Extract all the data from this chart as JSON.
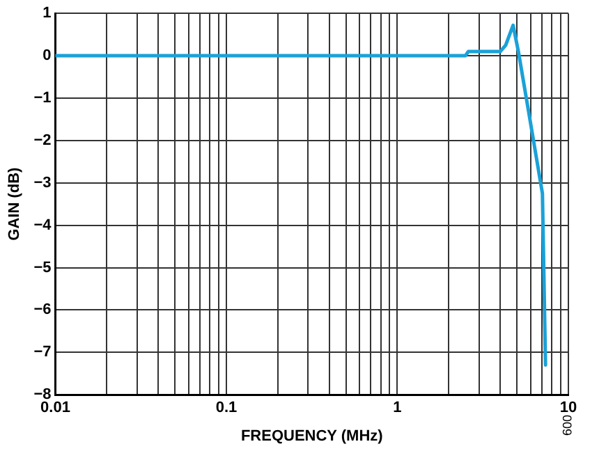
{
  "chart_data": {
    "type": "line",
    "xlabel": "FREQUENCY (MHz)",
    "ylabel": "GAIN (dB)",
    "log": "x",
    "grid": true,
    "legend": false,
    "marker": "none",
    "line_style": "solid",
    "xlim": [
      0.01,
      10
    ],
    "xticks": [
      0.01,
      {
        "value": 0.02,
        "label": null
      },
      {
        "value": 0.03,
        "label": null
      },
      {
        "value": 0.04,
        "label": null
      },
      {
        "value": 0.05,
        "label": null
      },
      {
        "value": 0.06,
        "label": null
      },
      {
        "value": 0.07,
        "label": null
      },
      {
        "value": 0.08,
        "label": null
      },
      {
        "value": 0.09,
        "label": null
      },
      0.1,
      {
        "value": 0.2,
        "label": null
      },
      {
        "value": 0.3,
        "label": null
      },
      {
        "value": 0.4,
        "label": null
      },
      {
        "value": 0.5,
        "label": null
      },
      {
        "value": 0.6,
        "label": null
      },
      {
        "value": 0.7,
        "label": null
      },
      {
        "value": 0.8,
        "label": null
      },
      {
        "value": 0.9,
        "label": null
      },
      1,
      {
        "value": 2,
        "label": null
      },
      {
        "value": 3,
        "label": null
      },
      {
        "value": 4,
        "label": null
      },
      {
        "value": 5,
        "label": null
      },
      {
        "value": 6,
        "label": null
      },
      {
        "value": 7,
        "label": null
      },
      {
        "value": 8,
        "label": null
      },
      {
        "value": 9,
        "label": null
      },
      10
    ],
    "ylim": [
      -8,
      1
    ],
    "yticks": [
      {
        "value": -8,
        "label": "−8"
      },
      {
        "value": -7,
        "label": "−7"
      },
      {
        "value": -6,
        "label": "−6"
      },
      {
        "value": -5,
        "label": "−5"
      },
      {
        "value": -4,
        "label": "−4"
      },
      {
        "value": -3,
        "label": "−3"
      },
      {
        "value": -2,
        "label": "−2"
      },
      {
        "value": -1,
        "label": "−1"
      },
      0,
      1
    ],
    "series": [
      {
        "color": "#1ba1d8",
        "x": [
          0.01,
          0.1,
          1,
          2.5,
          2.6,
          4.0,
          4.3,
          4.75,
          5.1,
          5.9,
          7.05,
          7.35
        ],
        "values": [
          0,
          0,
          0,
          0,
          0.1,
          0.1,
          0.25,
          0.72,
          0.1,
          -1.4,
          -3.25,
          -7.3
        ]
      }
    ],
    "annotations": [
      "009"
    ]
  }
}
